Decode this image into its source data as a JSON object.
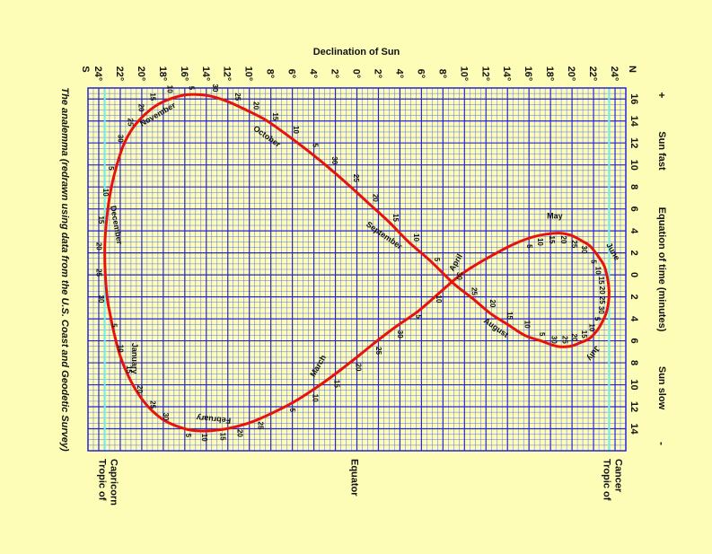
{
  "page": {
    "background": "#fdfdb8"
  },
  "chart_data": {
    "type": "line",
    "title": "Declination of Sun",
    "caption": "The analemma (redrawn using data from the U.S. Coast and Geodetic Survey)",
    "x_axis": {
      "name": "Declination of Sun",
      "range": [
        -25,
        25
      ],
      "ticks": [
        {
          "value": -24,
          "label": "24°"
        },
        {
          "value": -22,
          "label": "22°"
        },
        {
          "value": -20,
          "label": "20°"
        },
        {
          "value": -18,
          "label": "18°"
        },
        {
          "value": -16,
          "label": "16°"
        },
        {
          "value": -14,
          "label": "14°"
        },
        {
          "value": -12,
          "label": "12°"
        },
        {
          "value": -10,
          "label": "10°"
        },
        {
          "value": -8,
          "label": "8°"
        },
        {
          "value": -6,
          "label": "6°"
        },
        {
          "value": -4,
          "label": "4°"
        },
        {
          "value": -2,
          "label": "2°"
        },
        {
          "value": 0,
          "label": "0°"
        },
        {
          "value": 2,
          "label": "2°"
        },
        {
          "value": 4,
          "label": "4°"
        },
        {
          "value": 6,
          "label": "6°"
        },
        {
          "value": 8,
          "label": "8°"
        },
        {
          "value": 10,
          "label": "10°"
        },
        {
          "value": 12,
          "label": "12°"
        },
        {
          "value": 14,
          "label": "14°"
        },
        {
          "value": 16,
          "label": "16°"
        },
        {
          "value": 18,
          "label": "18°"
        },
        {
          "value": 20,
          "label": "20°"
        },
        {
          "value": 22,
          "label": "22°"
        },
        {
          "value": 24,
          "label": "24°"
        }
      ],
      "south_label": "S",
      "north_label": "N"
    },
    "y_axis": {
      "name": "Equation of time (minutes)",
      "range": [
        -16,
        17
      ],
      "ticks": [
        {
          "value": 16,
          "label": "16"
        },
        {
          "value": 14,
          "label": "14"
        },
        {
          "value": 12,
          "label": "12"
        },
        {
          "value": 10,
          "label": "10"
        },
        {
          "value": 8,
          "label": "8"
        },
        {
          "value": 6,
          "label": "6"
        },
        {
          "value": 4,
          "label": "4"
        },
        {
          "value": 2,
          "label": "2"
        },
        {
          "value": 0,
          "label": "0"
        },
        {
          "value": -2,
          "label": "2"
        },
        {
          "value": -4,
          "label": "4"
        },
        {
          "value": -6,
          "label": "6"
        },
        {
          "value": -8,
          "label": "8"
        },
        {
          "value": -10,
          "label": "10"
        },
        {
          "value": -12,
          "label": "12"
        },
        {
          "value": -14,
          "label": "14"
        }
      ],
      "plus_label": "+",
      "minus_label": "-",
      "fast_label": "Sun fast",
      "slow_label": "Sun slow"
    },
    "grid": true,
    "colors": {
      "curve": "#e8120c",
      "major_grid": "#2525d8",
      "minor_grid": "#5b6cf0",
      "tropic": "#6ff0ef"
    },
    "reference_lines": [
      {
        "declination": -23.44,
        "label_line1": "Tropic of",
        "label_line2": "Capricorn"
      },
      {
        "declination": 0,
        "label_line1": "Equator",
        "label_line2": ""
      },
      {
        "declination": 23.44,
        "label_line1": "Tropic of",
        "label_line2": "Cancer"
      }
    ],
    "series": [
      {
        "points": [
          {
            "date": "Jan 1",
            "declination": -23.0,
            "eot": -3.3
          },
          {
            "date": "Jan 5",
            "declination": -22.6,
            "eot": -5.2
          },
          {
            "date": "Jan 10",
            "declination": -22.0,
            "eot": -7.4
          },
          {
            "date": "Jan 15",
            "declination": -21.2,
            "eot": -9.3
          },
          {
            "date": "Jan 20",
            "declination": -20.2,
            "eot": -11.0
          },
          {
            "date": "Jan 25",
            "declination": -19.1,
            "eot": -12.3
          },
          {
            "date": "Jan 30",
            "declination": -17.8,
            "eot": -13.3
          },
          {
            "date": "Feb 5",
            "declination": -16.0,
            "eot": -14.0
          },
          {
            "date": "Feb 10",
            "declination": -14.5,
            "eot": -14.2
          },
          {
            "date": "Feb 15",
            "declination": -12.8,
            "eot": -14.1
          },
          {
            "date": "Feb 20",
            "declination": -11.2,
            "eot": -13.8
          },
          {
            "date": "Feb 25",
            "declination": -9.3,
            "eot": -13.2
          },
          {
            "date": "Mar 5",
            "declination": -6.3,
            "eot": -11.8
          },
          {
            "date": "Mar 10",
            "declination": -4.3,
            "eot": -10.6
          },
          {
            "date": "Mar 15",
            "declination": -2.4,
            "eot": -9.3
          },
          {
            "date": "Mar 20",
            "declination": -0.4,
            "eot": -7.8
          },
          {
            "date": "Mar 25",
            "declination": 1.5,
            "eot": -6.3
          },
          {
            "date": "Mar 30",
            "declination": 3.5,
            "eot": -4.8
          },
          {
            "date": "Apr 5",
            "declination": 5.7,
            "eot": -3.3
          },
          {
            "date": "Apr 10",
            "declination": 7.6,
            "eot": -1.7
          },
          {
            "date": "Apr 15",
            "declination": 9.5,
            "eot": -0.1
          },
          {
            "date": "Apr 20",
            "declination": 11.2,
            "eot": 1.0
          },
          {
            "date": "Apr 25",
            "declination": 13.0,
            "eot": 2.0
          },
          {
            "date": "Apr 30",
            "declination": 14.6,
            "eot": 2.8
          },
          {
            "date": "May 5",
            "declination": 16.2,
            "eot": 3.4
          },
          {
            "date": "May 10",
            "declination": 17.6,
            "eot": 3.7
          },
          {
            "date": "May 15",
            "declination": 18.8,
            "eot": 3.8
          },
          {
            "date": "May 20",
            "declination": 19.9,
            "eot": 3.6
          },
          {
            "date": "May 25",
            "declination": 20.9,
            "eot": 3.1
          },
          {
            "date": "May 30",
            "declination": 21.7,
            "eot": 2.6
          },
          {
            "date": "Jun 5",
            "declination": 22.5,
            "eot": 1.6
          },
          {
            "date": "Jun 10",
            "declination": 23.0,
            "eot": 0.8
          },
          {
            "date": "Jun 15",
            "declination": 23.3,
            "eot": -0.3
          },
          {
            "date": "Jun 20",
            "declination": 23.44,
            "eot": -1.4
          },
          {
            "date": "Jun 25",
            "declination": 23.4,
            "eot": -2.4
          },
          {
            "date": "Jun 30",
            "declination": 23.2,
            "eot": -3.4
          },
          {
            "date": "Jul 5",
            "declination": 22.8,
            "eot": -4.3
          },
          {
            "date": "Jul 10",
            "declination": 22.3,
            "eot": -5.1
          },
          {
            "date": "Jul 15",
            "declination": 21.6,
            "eot": -5.8
          },
          {
            "date": "Jul 20",
            "declination": 20.7,
            "eot": -6.2
          },
          {
            "date": "Jul 25",
            "declination": 19.8,
            "eot": -6.5
          },
          {
            "date": "Jul 30",
            "declination": 18.6,
            "eot": -6.5
          },
          {
            "date": "Aug 5",
            "declination": 17.1,
            "eot": -6.0
          },
          {
            "date": "Aug 10",
            "declination": 15.6,
            "eot": -5.5
          },
          {
            "date": "Aug 15",
            "declination": 14.0,
            "eot": -4.5
          },
          {
            "date": "Aug 20",
            "declination": 12.4,
            "eot": -3.5
          },
          {
            "date": "Aug 25",
            "declination": 10.7,
            "eot": -2.1
          },
          {
            "date": "Aug 30",
            "declination": 9.0,
            "eot": -0.8
          },
          {
            "date": "Sep 5",
            "declination": 6.8,
            "eot": 1.3
          },
          {
            "date": "Sep 10",
            "declination": 4.8,
            "eot": 3.0
          },
          {
            "date": "Sep 15",
            "declination": 3.0,
            "eot": 4.8
          },
          {
            "date": "Sep 20",
            "declination": 1.1,
            "eot": 6.5
          },
          {
            "date": "Sep 25",
            "declination": -0.8,
            "eot": 8.2
          },
          {
            "date": "Sep 30",
            "declination": -2.8,
            "eot": 9.9
          },
          {
            "date": "Oct 5",
            "declination": -4.7,
            "eot": 11.4
          },
          {
            "date": "Oct 10",
            "declination": -6.6,
            "eot": 12.8
          },
          {
            "date": "Oct 15",
            "declination": -8.5,
            "eot": 14.1
          },
          {
            "date": "Oct 20",
            "declination": -10.3,
            "eot": 15.0
          },
          {
            "date": "Oct 25",
            "declination": -12.1,
            "eot": 15.8
          },
          {
            "date": "Oct 30",
            "declination": -13.8,
            "eot": 16.3
          },
          {
            "date": "Nov 5",
            "declination": -15.7,
            "eot": 16.4
          },
          {
            "date": "Nov 10",
            "declination": -17.1,
            "eot": 16.1
          },
          {
            "date": "Nov 15",
            "declination": -18.5,
            "eot": 15.5
          },
          {
            "date": "Nov 20",
            "declination": -19.7,
            "eot": 14.6
          },
          {
            "date": "Nov 25",
            "declination": -20.8,
            "eot": 13.4
          },
          {
            "date": "Nov 30",
            "declination": -21.7,
            "eot": 11.8
          },
          {
            "date": "Dec 5",
            "declination": -22.4,
            "eot": 9.7
          },
          {
            "date": "Dec 10",
            "declination": -22.9,
            "eot": 7.6
          },
          {
            "date": "Dec 15",
            "declination": -23.25,
            "eot": 5.2
          },
          {
            "date": "Dec 20",
            "declination": -23.43,
            "eot": 2.8
          },
          {
            "date": "Dec 25",
            "declination": -23.4,
            "eot": 0.2
          },
          {
            "date": "Dec 30",
            "declination": -23.2,
            "eot": -2.2
          }
        ]
      }
    ],
    "day_labels": [
      {
        "text": "5",
        "declination": -22.8,
        "eot": -4.6
      },
      {
        "text": "10",
        "declination": -22.2,
        "eot": -6.7
      },
      {
        "text": "15",
        "declination": -21.4,
        "eot": -8.6
      },
      {
        "text": "20",
        "declination": -20.4,
        "eot": -10.4
      },
      {
        "text": "25",
        "declination": -19.2,
        "eot": -11.8
      },
      {
        "text": "30",
        "declination": -18.0,
        "eot": -12.9
      },
      {
        "text": "5",
        "declination": -15.9,
        "eot": -14.6
      },
      {
        "text": "10",
        "declination": -14.4,
        "eot": -14.8
      },
      {
        "text": "15",
        "declination": -12.7,
        "eot": -14.7
      },
      {
        "text": "20",
        "declination": -11.1,
        "eot": -14.4
      },
      {
        "text": "25",
        "declination": -9.2,
        "eot": -13.7
      },
      {
        "text": "5",
        "declination": -6.2,
        "eot": -12.3
      },
      {
        "text": "10",
        "declination": -4.1,
        "eot": -11.2
      },
      {
        "text": "15",
        "declination": -2.1,
        "eot": -9.9
      },
      {
        "text": "20",
        "declination": -0.1,
        "eot": -8.4
      },
      {
        "text": "25",
        "declination": 1.8,
        "eot": -6.9
      },
      {
        "text": "30",
        "declination": 3.8,
        "eot": -5.4
      },
      {
        "text": "5",
        "declination": 5.5,
        "eot": -3.8
      },
      {
        "text": "10",
        "declination": 7.4,
        "eot": -2.2
      },
      {
        "text": "5",
        "declination": 15.8,
        "eot": 2.6
      },
      {
        "text": "10",
        "declination": 16.8,
        "eot": 3.0
      },
      {
        "text": "15",
        "declination": 17.9,
        "eot": 3.2
      },
      {
        "text": "20",
        "declination": 19.0,
        "eot": 3.2
      },
      {
        "text": "25",
        "declination": 20.0,
        "eot": 2.8
      },
      {
        "text": "30",
        "declination": 20.9,
        "eot": 2.3
      },
      {
        "text": "5",
        "declination": 21.8,
        "eot": 1.2
      },
      {
        "text": "10",
        "declination": 22.2,
        "eot": 0.4
      },
      {
        "text": "15",
        "declination": 22.5,
        "eot": -0.5
      },
      {
        "text": "20",
        "declination": 22.6,
        "eot": -1.4
      },
      {
        "text": "25",
        "declination": 22.6,
        "eot": -2.3
      },
      {
        "text": "30",
        "declination": 22.5,
        "eot": -3.2
      },
      {
        "text": "5",
        "declination": 22.1,
        "eot": -4.0
      },
      {
        "text": "10",
        "declination": 21.6,
        "eot": -4.8
      },
      {
        "text": "15",
        "declination": 20.9,
        "eot": -5.4
      },
      {
        "text": "20",
        "declination": 20.0,
        "eot": -5.7
      },
      {
        "text": "25",
        "declination": 19.1,
        "eot": -5.9
      },
      {
        "text": "30",
        "declination": 18.1,
        "eot": -5.9
      },
      {
        "text": "5",
        "declination": 17.0,
        "eot": -5.4
      },
      {
        "text": "10",
        "declination": 15.6,
        "eot": -4.5
      },
      {
        "text": "15",
        "declination": 14.0,
        "eot": -3.7
      },
      {
        "text": "20",
        "declination": 12.4,
        "eot": -2.6
      },
      {
        "text": "25",
        "declination": 10.7,
        "eot": -1.5
      },
      {
        "text": "30",
        "declination": 9.3,
        "eot": -0.1
      },
      {
        "text": "5",
        "declination": 7.2,
        "eot": 1.4
      },
      {
        "text": "10",
        "declination": 5.3,
        "eot": 3.4
      },
      {
        "text": "15",
        "declination": 3.4,
        "eot": 5.2
      },
      {
        "text": "20",
        "declination": 1.5,
        "eot": 7.0
      },
      {
        "text": "25",
        "declination": -0.3,
        "eot": 8.8
      },
      {
        "text": "30",
        "declination": -2.3,
        "eot": 10.4
      },
      {
        "text": "5",
        "declination": -4.1,
        "eot": 11.8
      },
      {
        "text": "10",
        "declination": -5.9,
        "eot": 13.2
      },
      {
        "text": "15",
        "declination": -7.8,
        "eot": 14.4
      },
      {
        "text": "20",
        "declination": -9.6,
        "eot": 15.4
      },
      {
        "text": "25",
        "declination": -11.3,
        "eot": 16.2
      },
      {
        "text": "30",
        "declination": -13.4,
        "eot": 17.0
      },
      {
        "text": "5",
        "declination": -15.6,
        "eot": 17.0
      },
      {
        "text": "10",
        "declination": -17.6,
        "eot": 16.9
      },
      {
        "text": "15",
        "declination": -19.2,
        "eot": 16.2
      },
      {
        "text": "20",
        "declination": -20.3,
        "eot": 15.2
      },
      {
        "text": "25",
        "declination": -21.3,
        "eot": 13.9
      },
      {
        "text": "30",
        "declination": -22.2,
        "eot": 12.4
      },
      {
        "text": "5",
        "declination": -23.1,
        "eot": 9.7
      },
      {
        "text": "10",
        "declination": -23.6,
        "eot": 7.5
      },
      {
        "text": "15",
        "declination": -24.0,
        "eot": 5.0
      },
      {
        "text": "20",
        "declination": -24.2,
        "eot": 2.6
      },
      {
        "text": "25",
        "declination": -24.2,
        "eot": 0.2
      },
      {
        "text": "30",
        "declination": -24.0,
        "eot": -2.2
      }
    ],
    "month_labels": [
      {
        "text": "January",
        "declination": -20.9,
        "eot": -7.6
      },
      {
        "text": "February",
        "declination": -13.3,
        "eot": -12.9
      },
      {
        "text": "March",
        "declination": -3.4,
        "eot": -8.4
      },
      {
        "text": "April",
        "declination": 9.4,
        "eot": 1.0
      },
      {
        "text": "May",
        "declination": 18.4,
        "eot": 5.1
      },
      {
        "text": "June",
        "declination": 23.6,
        "eot": 2.0
      },
      {
        "text": "July",
        "declination": 21.8,
        "eot": -7.0
      },
      {
        "text": "August",
        "declination": 12.8,
        "eot": -5.0
      },
      {
        "text": "September",
        "declination": 2.4,
        "eot": 3.4
      },
      {
        "text": "October",
        "declination": -8.5,
        "eot": 12.4
      },
      {
        "text": "November",
        "declination": -18.4,
        "eot": 14.4
      },
      {
        "text": "December",
        "declination": -22.6,
        "eot": 4.5
      }
    ]
  }
}
